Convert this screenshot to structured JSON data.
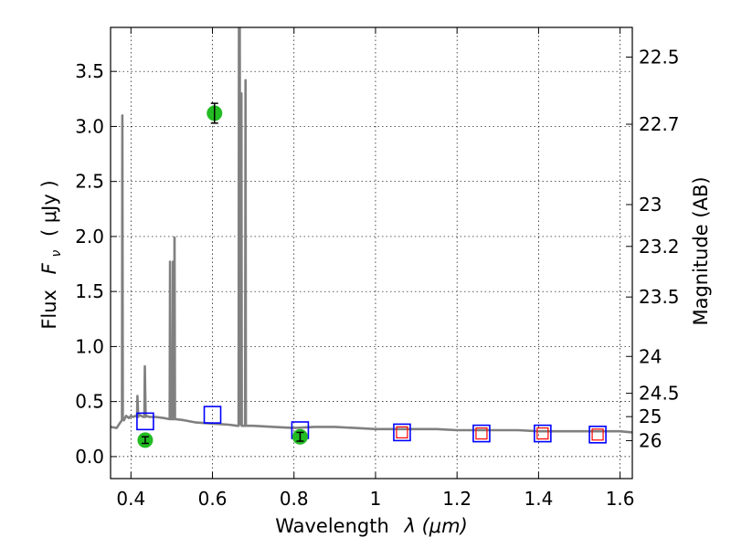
{
  "chart_data": {
    "type": "line",
    "title": "",
    "xlabel": "Wavelength",
    "xlabel_symbol": "λ (μm)",
    "ylabel": "Flux",
    "ylabel_symbol": "F",
    "ylabel_subscript": "ν",
    "ylabel_unit": "( μJy )",
    "y2label": "Magnitude (AB)",
    "xlim": [
      0.35,
      1.63
    ],
    "ylim": [
      -0.2,
      3.9
    ],
    "grid": true,
    "x_ticks": [
      0.4,
      0.6,
      0.8,
      1.0,
      1.2,
      1.4,
      1.6
    ],
    "x_tick_labels": [
      "0.4",
      "0.6",
      "0.8",
      "1",
      "1.2",
      "1.4",
      "1.6"
    ],
    "y_ticks": [
      0.0,
      0.5,
      1.0,
      1.5,
      2.0,
      2.5,
      3.0,
      3.5
    ],
    "y_tick_labels": [
      "0.0",
      "0.5",
      "1.0",
      "1.5",
      "2.0",
      "2.5",
      "3.0",
      "3.5"
    ],
    "y2_ticks": [
      {
        "label": "22.5",
        "flux": 3.63
      },
      {
        "label": "22.7",
        "flux": 3.02
      },
      {
        "label": "23",
        "flux": 2.29
      },
      {
        "label": "23.2",
        "flux": 1.91
      },
      {
        "label": "23.5",
        "flux": 1.45
      },
      {
        "label": "24",
        "flux": 0.91
      },
      {
        "label": "24.5",
        "flux": 0.575
      },
      {
        "label": "25",
        "flux": 0.363
      },
      {
        "label": "26",
        "flux": 0.145
      }
    ],
    "series": [
      {
        "name": "model spectrum",
        "kind": "line",
        "color": "#808080",
        "x": [
          0.35,
          0.365,
          0.372,
          0.376,
          0.378,
          0.379,
          0.38,
          0.381,
          0.383,
          0.388,
          0.395,
          0.4,
          0.405,
          0.412,
          0.415,
          0.416,
          0.418,
          0.42,
          0.425,
          0.43,
          0.433,
          0.434,
          0.436,
          0.438,
          0.445,
          0.46,
          0.48,
          0.495,
          0.496,
          0.497,
          0.498,
          0.499,
          0.5,
          0.502,
          0.503,
          0.504,
          0.505,
          0.506,
          0.507,
          0.508,
          0.509,
          0.51,
          0.53,
          0.56,
          0.6,
          0.64,
          0.66,
          0.664,
          0.665,
          0.666,
          0.667,
          0.668,
          0.67,
          0.671,
          0.672,
          0.673,
          0.674,
          0.676,
          0.68,
          0.681,
          0.682,
          0.683,
          0.684,
          0.686,
          0.7,
          0.75,
          0.8,
          0.85,
          0.9,
          0.95,
          1.0,
          1.05,
          1.1,
          1.15,
          1.2,
          1.25,
          1.3,
          1.35,
          1.4,
          1.45,
          1.5,
          1.55,
          1.6,
          1.63
        ],
        "y": [
          0.27,
          0.26,
          0.3,
          0.32,
          0.33,
          3.1,
          0.35,
          0.34,
          0.33,
          0.37,
          0.35,
          0.37,
          0.36,
          0.37,
          0.36,
          0.55,
          0.36,
          0.38,
          0.37,
          0.36,
          0.36,
          0.82,
          0.36,
          0.37,
          0.36,
          0.36,
          0.35,
          0.34,
          1.77,
          0.34,
          0.35,
          0.34,
          0.35,
          0.34,
          1.77,
          0.34,
          0.35,
          0.34,
          1.99,
          0.34,
          0.34,
          0.34,
          0.33,
          0.31,
          0.3,
          0.29,
          0.28,
          0.28,
          3.9,
          3.9,
          3.9,
          0.3,
          0.29,
          3.3,
          0.28,
          0.28,
          0.28,
          0.28,
          0.28,
          3.42,
          0.28,
          0.28,
          0.28,
          0.28,
          0.28,
          0.27,
          0.26,
          0.27,
          0.27,
          0.26,
          0.25,
          0.25,
          0.25,
          0.25,
          0.24,
          0.24,
          0.24,
          0.24,
          0.23,
          0.23,
          0.23,
          0.23,
          0.23,
          0.22
        ]
      },
      {
        "name": "observed photometry",
        "kind": "points",
        "color": "#22bb22",
        "x": [
          0.435,
          0.605,
          0.815
        ],
        "y": [
          0.15,
          3.12,
          0.18
        ],
        "yerr": [
          0.03,
          0.09,
          0.04
        ]
      },
      {
        "name": "model photometry (blue)",
        "kind": "squares",
        "color": "#0000ff",
        "x": [
          0.435,
          0.6,
          0.815,
          1.065,
          1.26,
          1.41,
          1.545
        ],
        "y": [
          0.32,
          0.38,
          0.24,
          0.22,
          0.21,
          0.21,
          0.2
        ]
      },
      {
        "name": "model photometry (red)",
        "kind": "squares",
        "color": "#ff0000",
        "x": [
          1.065,
          1.26,
          1.41,
          1.545
        ],
        "y": [
          0.22,
          0.21,
          0.21,
          0.2
        ]
      }
    ]
  }
}
